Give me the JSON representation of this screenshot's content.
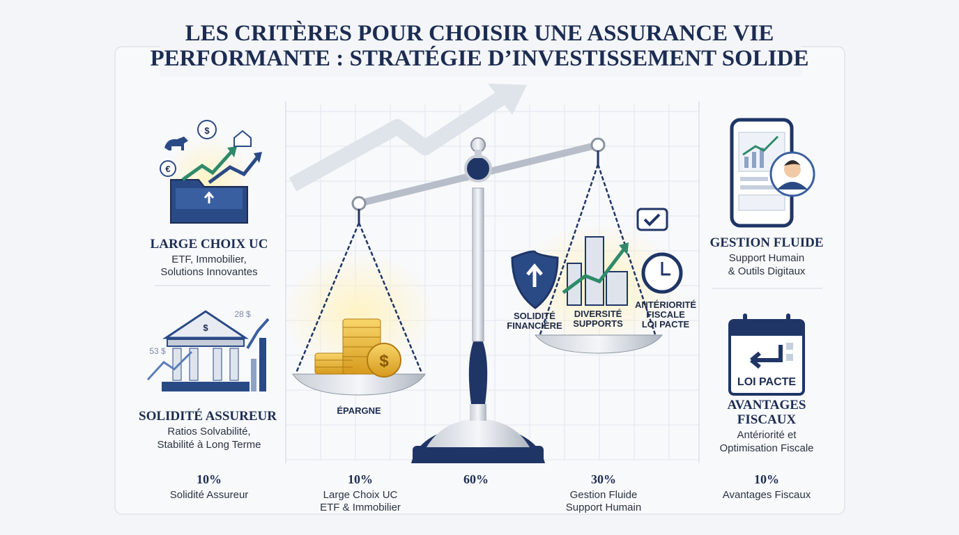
{
  "header": {
    "title": [
      "LES CRITÈRES POUR CHOISIR UNE ASSURANCE VIE",
      "PERFORMANTE : STRATÉGIE D’INVESTISSEMENT SOLIDE"
    ]
  },
  "panels": [
    {
      "heading": [
        "LARGE CHOIX UC"
      ],
      "description": [
        "ETF, Immobilier,",
        "Solutions Innovantes"
      ]
    },
    {
      "heading": [
        "SOLIDITÉ ASSUREUR"
      ],
      "description": [
        "Ratios Solvabilité,",
        "Stabilité à Long Terme"
      ]
    },
    {
      "heading": [
        "GESTION FLUIDE"
      ],
      "description": [
        "Support Humain",
        "& Outils Digitaux"
      ]
    },
    {
      "heading": [
        "AVANTAGES",
        "FISCAUX"
      ],
      "description": [
        "Antériorité et",
        "Optimisation Fiscale"
      ]
    }
  ],
  "icons": {
    "euro": "€",
    "dollar": "$",
    "bank_dollar": "$",
    "price_high": "28 $",
    "price_low": "53 $",
    "coin": "$",
    "calendar": "LOI PACTE"
  },
  "scale": {
    "left_label": "ÉPARGNE",
    "right_labels": [
      [
        "SOLIDITÉ",
        "FINANCIÈRE"
      ],
      [
        "DIVERSITÉ",
        "SUPPORTS"
      ],
      [
        "ANTÉRIORITÉ",
        "FISCALE",
        "LOI PACTE"
      ]
    ]
  },
  "footer": [
    {
      "share": "10%",
      "label": [
        "Solidité Assureur"
      ]
    },
    {
      "share": "10%",
      "label": [
        "Large Choix UC",
        "ETF & Immobilier"
      ]
    },
    {
      "share": "60%",
      "label": []
    },
    {
      "share": "30%",
      "label": [
        "Gestion Fluide",
        "Support Humain"
      ]
    },
    {
      "share": "10%",
      "label": [
        "Avantages Fiscaux"
      ]
    }
  ]
}
